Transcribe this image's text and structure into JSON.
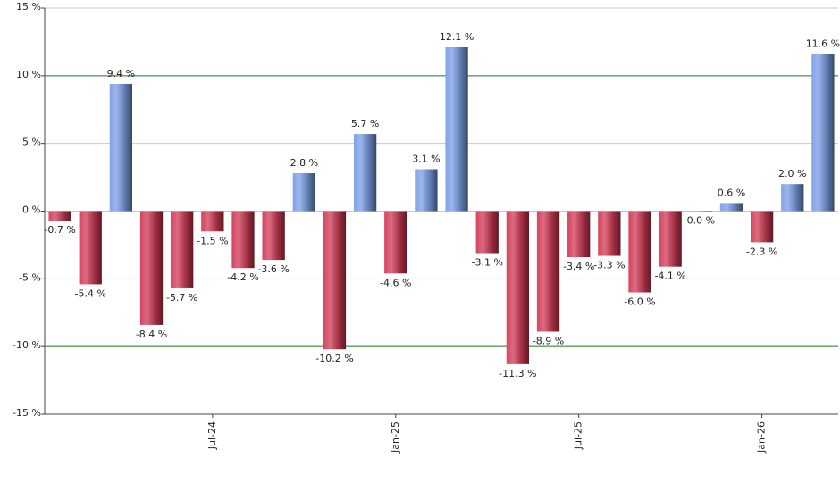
{
  "chart_data": {
    "type": "bar",
    "categories": [
      null,
      null,
      null,
      null,
      null,
      "Jul-24",
      null,
      null,
      null,
      null,
      null,
      "Jan-25",
      null,
      null,
      null,
      null,
      null,
      "Jul-25",
      null,
      null,
      null,
      null,
      null,
      "Jan-26",
      null,
      null
    ],
    "values": [
      -0.7,
      -5.4,
      9.4,
      -8.4,
      -5.7,
      -1.5,
      -4.2,
      -3.6,
      2.8,
      -10.2,
      5.7,
      -4.6,
      3.1,
      12.1,
      -3.1,
      -11.3,
      -8.9,
      -3.4,
      -3.3,
      -6.0,
      -4.1,
      0.0,
      0.6,
      -2.3,
      2.0,
      11.6
    ],
    "value_labels": [
      "-0.7 %",
      "-5.4 %",
      "9.4 %",
      "-8.4 %",
      "-5.7 %",
      "-1.5 %",
      "-4.2 %",
      "-3.6 %",
      "2.8 %",
      "-10.2 %",
      "5.7 %",
      "-4.6 %",
      "3.1 %",
      "12.1 %",
      "-3.1 %",
      "-11.3 %",
      "-8.9 %",
      "-3.4 %",
      "-3.3 %",
      "-6.0 %",
      "-4.1 %",
      "0.0 %",
      "0.6 %",
      "-2.3 %",
      "2.0 %",
      "11.6 %"
    ],
    "positive_color": "#7a9ee6",
    "negative_color": "#d23a55",
    "ylim": [
      -15,
      15
    ],
    "yticks": [
      {
        "value": -15,
        "label": "-15 %"
      },
      {
        "value": -10,
        "label": "-10 %"
      },
      {
        "value": -5,
        "label": "-5 %"
      },
      {
        "value": 0,
        "label": "0 %"
      },
      {
        "value": 5,
        "label": "5 %"
      },
      {
        "value": 10,
        "label": "10 %"
      },
      {
        "value": 15,
        "label": "15 %"
      }
    ],
    "grid": true,
    "grid_color": "#c8c8c8",
    "highlight_color": "#1a7a1a",
    "highlight_ticks": [
      -10,
      10
    ]
  }
}
